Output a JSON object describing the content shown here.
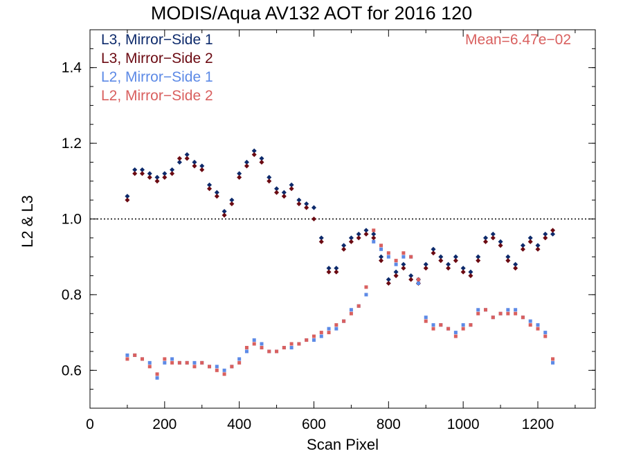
{
  "chart_data": {
    "type": "scatter",
    "title": "MODIS/Aqua AV132 AOT for 2016 120",
    "xlabel": "Scan Pixel",
    "ylabel": "L2 & L3",
    "xlim": [
      0,
      1354
    ],
    "ylim": [
      0.5,
      1.5
    ],
    "xticks": [
      0,
      200,
      400,
      600,
      800,
      1000,
      1200
    ],
    "xtick_labels": [
      "0",
      "200",
      "400",
      "600",
      "800",
      "1000",
      "1200"
    ],
    "yticks": [
      0.6,
      0.8,
      1.0,
      1.2,
      1.4
    ],
    "ytick_labels": [
      "0.6",
      "0.8",
      "1.0",
      "1.2",
      "1.4"
    ],
    "reference_line": 1.0,
    "annotation": "Mean=6.47e−02",
    "annotation_color": "#d9605f",
    "legend_position": "top-left",
    "series": [
      {
        "name": "L3, Mirror−Side 1",
        "color": "#0d2a6b",
        "x": [
          100,
          120,
          140,
          160,
          180,
          200,
          220,
          240,
          260,
          280,
          300,
          320,
          340,
          360,
          380,
          400,
          420,
          440,
          460,
          480,
          500,
          520,
          540,
          560,
          580,
          600,
          620,
          640,
          660,
          680,
          700,
          720,
          740,
          760,
          780,
          800,
          820,
          840,
          860,
          880,
          900,
          920,
          940,
          960,
          980,
          1000,
          1020,
          1040,
          1060,
          1080,
          1100,
          1120,
          1140,
          1160,
          1180,
          1200,
          1220,
          1240
        ],
        "y": [
          1.06,
          1.13,
          1.13,
          1.12,
          1.11,
          1.12,
          1.13,
          1.15,
          1.17,
          1.15,
          1.14,
          1.09,
          1.07,
          1.02,
          1.05,
          1.12,
          1.15,
          1.18,
          1.16,
          1.11,
          1.08,
          1.07,
          1.09,
          1.05,
          1.04,
          1.03,
          0.95,
          0.87,
          0.87,
          0.93,
          0.95,
          0.96,
          0.97,
          0.96,
          0.9,
          0.84,
          0.86,
          0.88,
          0.85,
          0.84,
          0.88,
          0.92,
          0.9,
          0.88,
          0.9,
          0.87,
          0.86,
          0.9,
          0.95,
          0.96,
          0.94,
          0.9,
          0.88,
          0.93,
          0.95,
          0.93,
          0.96,
          0.96
        ]
      },
      {
        "name": "L3, Mirror−Side 2",
        "color": "#6b0a12",
        "x": [
          100,
          120,
          140,
          160,
          180,
          200,
          220,
          240,
          260,
          280,
          300,
          320,
          340,
          360,
          380,
          400,
          420,
          440,
          460,
          480,
          500,
          520,
          540,
          560,
          580,
          600,
          620,
          640,
          660,
          680,
          700,
          720,
          740,
          760,
          780,
          800,
          820,
          840,
          860,
          880,
          900,
          920,
          940,
          960,
          980,
          1000,
          1020,
          1040,
          1060,
          1080,
          1100,
          1120,
          1140,
          1160,
          1180,
          1200,
          1220,
          1240
        ],
        "y": [
          1.05,
          1.12,
          1.12,
          1.11,
          1.1,
          1.11,
          1.12,
          1.16,
          1.16,
          1.14,
          1.13,
          1.08,
          1.06,
          1.01,
          1.04,
          1.11,
          1.14,
          1.17,
          1.15,
          1.1,
          1.07,
          1.06,
          1.08,
          1.04,
          1.03,
          1.0,
          0.94,
          0.86,
          0.86,
          0.92,
          0.94,
          0.95,
          0.96,
          0.95,
          0.89,
          0.83,
          0.85,
          0.87,
          0.84,
          0.83,
          0.87,
          0.91,
          0.89,
          0.87,
          0.89,
          0.86,
          0.85,
          0.89,
          0.94,
          0.95,
          0.93,
          0.89,
          0.87,
          0.92,
          0.94,
          0.92,
          0.95,
          0.97
        ]
      },
      {
        "name": "L2, Mirror−Side 1",
        "color": "#5d8ae6",
        "x": [
          100,
          120,
          140,
          160,
          180,
          200,
          220,
          240,
          260,
          280,
          300,
          320,
          340,
          360,
          380,
          400,
          420,
          440,
          460,
          480,
          500,
          520,
          540,
          560,
          580,
          600,
          620,
          640,
          660,
          680,
          700,
          720,
          740,
          760,
          780,
          800,
          820,
          840,
          860,
          880,
          900,
          920,
          940,
          960,
          980,
          1000,
          1020,
          1040,
          1060,
          1080,
          1100,
          1120,
          1140,
          1160,
          1180,
          1200,
          1220,
          1240
        ],
        "y": [
          0.64,
          0.64,
          0.63,
          0.62,
          0.58,
          0.62,
          0.63,
          0.62,
          0.62,
          0.62,
          0.62,
          0.61,
          0.61,
          0.6,
          0.61,
          0.63,
          0.65,
          0.68,
          0.67,
          0.65,
          0.65,
          0.66,
          0.66,
          0.67,
          0.68,
          0.68,
          0.69,
          0.71,
          0.71,
          0.73,
          0.76,
          0.77,
          0.8,
          0.94,
          0.92,
          0.9,
          0.88,
          0.9,
          0.9,
          0.83,
          0.74,
          0.72,
          0.72,
          0.71,
          0.7,
          0.72,
          0.72,
          0.76,
          0.76,
          0.74,
          0.75,
          0.76,
          0.76,
          0.74,
          0.73,
          0.72,
          0.7,
          0.62
        ]
      },
      {
        "name": "L2, Mirror−Side 2",
        "color": "#d9605f",
        "x": [
          100,
          120,
          140,
          160,
          180,
          200,
          220,
          240,
          260,
          280,
          300,
          320,
          340,
          360,
          380,
          400,
          420,
          440,
          460,
          480,
          500,
          520,
          540,
          560,
          580,
          600,
          620,
          640,
          660,
          680,
          700,
          720,
          740,
          760,
          780,
          800,
          820,
          840,
          860,
          880,
          900,
          920,
          940,
          960,
          980,
          1000,
          1020,
          1040,
          1060,
          1080,
          1100,
          1120,
          1140,
          1160,
          1180,
          1200,
          1220,
          1240
        ],
        "y": [
          0.63,
          0.64,
          0.63,
          0.61,
          0.59,
          0.63,
          0.62,
          0.62,
          0.62,
          0.61,
          0.62,
          0.61,
          0.6,
          0.59,
          0.61,
          0.62,
          0.66,
          0.67,
          0.66,
          0.65,
          0.65,
          0.66,
          0.67,
          0.67,
          0.68,
          0.69,
          0.7,
          0.7,
          0.72,
          0.73,
          0.75,
          0.77,
          0.82,
          0.97,
          0.93,
          0.91,
          0.89,
          0.91,
          0.9,
          0.84,
          0.73,
          0.71,
          0.72,
          0.71,
          0.69,
          0.71,
          0.72,
          0.75,
          0.76,
          0.74,
          0.75,
          0.75,
          0.75,
          0.74,
          0.72,
          0.71,
          0.69,
          0.63
        ]
      }
    ]
  }
}
